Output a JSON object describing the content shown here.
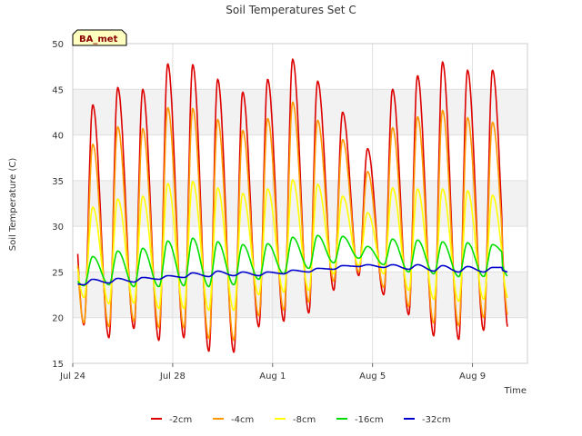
{
  "chart_data": {
    "type": "line",
    "title": "Soil Temperatures Set C",
    "xlabel": "Time",
    "ylabel": "Soil Temperature (C)",
    "badge": "BA_met",
    "x_ticks": [
      "Jul 24",
      "Jul 28",
      "Aug 1",
      "Aug 5",
      "Aug 9"
    ],
    "x_tick_days": [
      0,
      4,
      8,
      12,
      16
    ],
    "xlim_days": [
      0,
      18.2
    ],
    "ylim": [
      15,
      50
    ],
    "y_ticks": [
      15,
      20,
      25,
      30,
      35,
      40,
      45,
      50
    ],
    "grid": true,
    "band_shading": "alternating grey horizontal bands",
    "legend_position": "bottom-center",
    "x_start_day": 0.2,
    "x_end_day": 17.4,
    "series": [
      {
        "name": "-2cm",
        "color": "#dd0000",
        "daily_max": [
          43.3,
          45.2,
          45.0,
          47.8,
          47.7,
          46.1,
          44.7,
          46.1,
          48.3,
          45.9,
          42.5,
          38.5,
          45.0,
          46.5,
          48.0,
          47.1,
          47.1
        ],
        "daily_min": [
          19.2,
          17.8,
          18.8,
          17.5,
          17.8,
          16.3,
          16.2,
          19.0,
          19.6,
          20.5,
          23.0,
          24.6,
          22.5,
          20.3,
          18.0,
          17.6,
          18.6
        ],
        "end_value": 21.0
      },
      {
        "name": "-4cm",
        "color": "#ff9900",
        "daily_max": [
          39.0,
          40.9,
          40.7,
          43.0,
          42.9,
          41.7,
          40.5,
          41.8,
          43.6,
          41.6,
          39.5,
          36.0,
          40.8,
          42.0,
          42.7,
          41.9,
          41.4
        ],
        "daily_min": [
          19.4,
          19.0,
          19.6,
          18.9,
          18.9,
          17.7,
          17.5,
          20.2,
          20.8,
          21.7,
          24.0,
          25.0,
          23.3,
          21.2,
          19.4,
          19.1,
          20.0
        ],
        "end_value": 22.5
      },
      {
        "name": "-8cm",
        "color": "#ffff00",
        "daily_max": [
          32.1,
          33.0,
          33.3,
          34.7,
          34.9,
          34.2,
          33.6,
          34.1,
          35.1,
          34.6,
          33.3,
          31.5,
          34.2,
          34.1,
          34.1,
          33.9,
          33.4
        ],
        "daily_min": [
          22.2,
          21.5,
          21.6,
          21.0,
          21.0,
          20.8,
          20.8,
          22.5,
          22.8,
          23.0,
          24.8,
          25.7,
          24.8,
          23.0,
          22.0,
          21.8,
          22.0
        ],
        "end_value": 23.5
      },
      {
        "name": "-16cm",
        "color": "#00dd00",
        "daily_max": [
          26.7,
          27.3,
          27.6,
          28.4,
          28.7,
          28.3,
          28.0,
          28.1,
          28.8,
          29.0,
          28.9,
          27.8,
          28.6,
          28.5,
          28.3,
          28.2,
          28.0
        ],
        "daily_min": [
          23.5,
          23.6,
          23.4,
          23.4,
          23.5,
          23.4,
          23.6,
          24.2,
          24.8,
          25.4,
          26.0,
          26.5,
          25.8,
          25.0,
          24.8,
          24.5,
          24.5
        ],
        "start_value": 25.0,
        "end_value": 26.7
      },
      {
        "name": "-32cm",
        "color": "#0000cc",
        "daily_max": [
          24.2,
          24.3,
          24.4,
          24.6,
          24.9,
          25.1,
          25.0,
          25.0,
          25.2,
          25.4,
          25.7,
          25.8,
          25.8,
          25.8,
          25.7,
          25.6,
          25.5
        ],
        "daily_min": [
          23.6,
          23.8,
          23.9,
          24.2,
          24.4,
          24.5,
          24.6,
          24.6,
          24.8,
          25.0,
          25.3,
          25.6,
          25.5,
          25.3,
          25.1,
          25.0,
          25.0
        ],
        "start_value": 23.9,
        "end_value": 25.5
      }
    ]
  }
}
